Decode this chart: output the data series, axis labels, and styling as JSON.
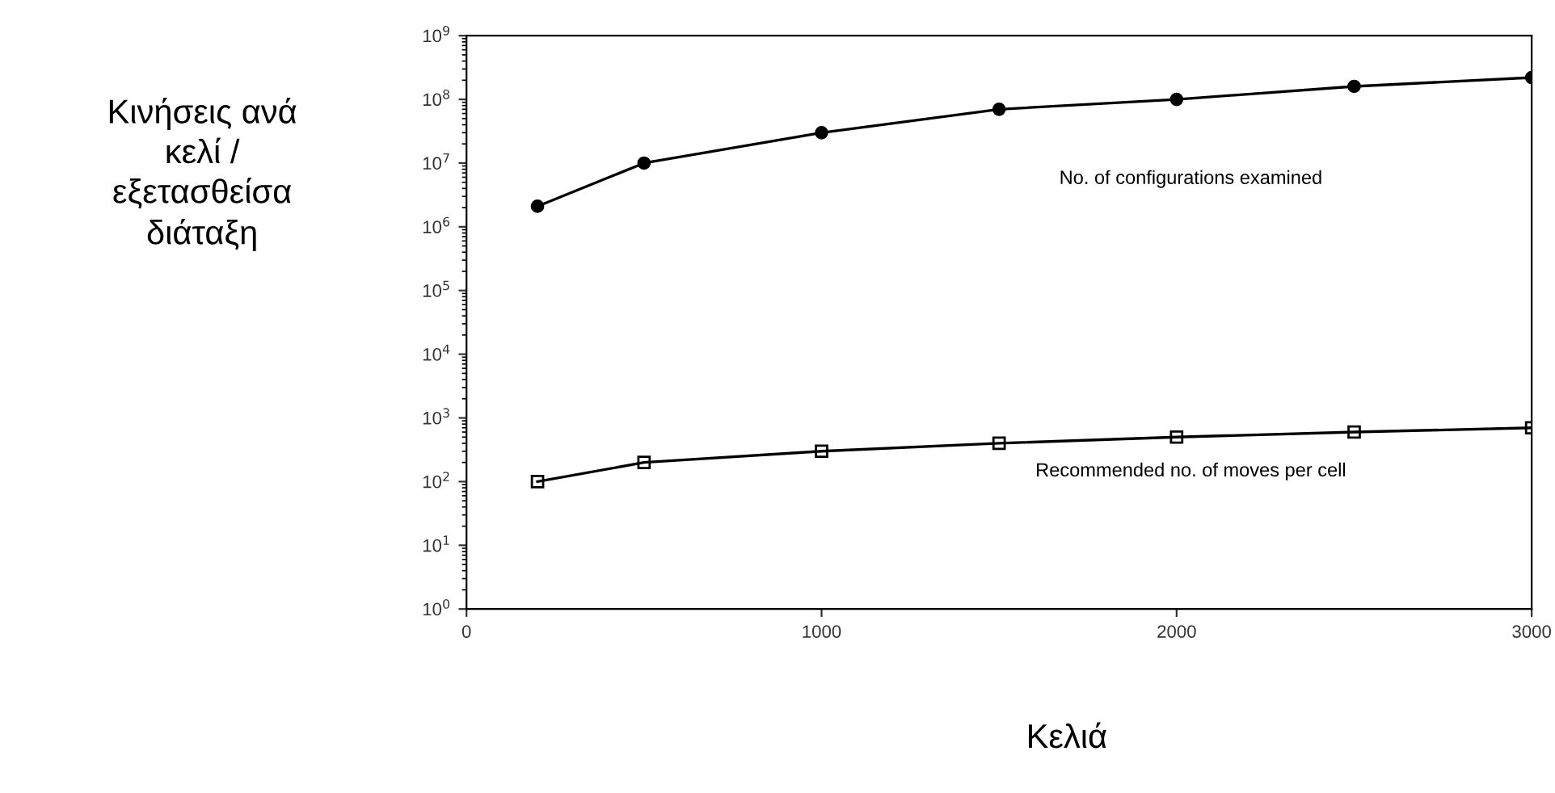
{
  "chart_data": {
    "type": "line",
    "xlabel": "Κελιά",
    "ylabel": "Κινήσεις ανά\nκελί /\nεξετασθείσα\nδιάταξη",
    "log": "y",
    "grid": false,
    "legend": false,
    "xlim": [
      0,
      3000
    ],
    "xticks": [
      0,
      1000,
      2000,
      3000
    ],
    "ylim": [
      1,
      1000000000
    ],
    "yticks": [
      {
        "value": 1,
        "label": "10$^{0}$"
      },
      {
        "value": 10,
        "label": "10$^{1}$"
      },
      {
        "value": 100,
        "label": "10$^{2}$"
      },
      {
        "value": 1000,
        "label": "10$^{3}$"
      },
      {
        "value": 10000,
        "label": "10$^{4}$"
      },
      {
        "value": 100000,
        "label": "10$^{5}$"
      },
      {
        "value": 1000000,
        "label": "10$^{6}$"
      },
      {
        "value": 10000000,
        "label": "10$^{7}$"
      },
      {
        "value": 100000000,
        "label": "10$^{8}$"
      },
      {
        "value": 1000000000,
        "label": "10$^{9}$"
      }
    ],
    "x": [
      200,
      500,
      1000,
      1500,
      2000,
      2500,
      3000
    ],
    "series": [
      {
        "color": "#000000",
        "marker": "circle",
        "values": [
          2100000,
          10000000,
          30000000,
          70000000,
          100000000,
          160000000,
          220000000
        ]
      },
      {
        "color": "#000000",
        "marker": "square",
        "values": [
          100,
          200,
          300,
          400,
          500,
          600,
          700
        ]
      }
    ],
    "annotations": [
      "No. of configurations examined",
      "Recommended no. of moves per cell"
    ]
  }
}
